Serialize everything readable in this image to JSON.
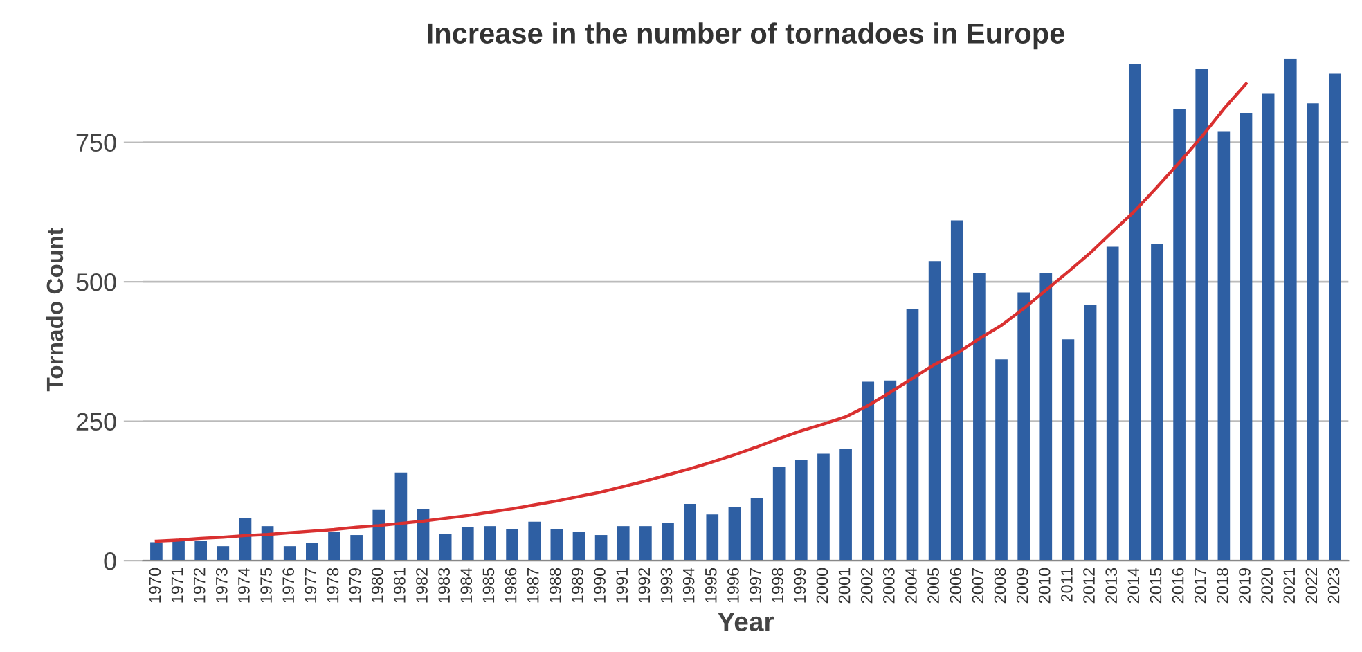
{
  "chart_data": {
    "type": "bar",
    "title": "Increase in the number of tornadoes in Europe",
    "xlabel": "Year",
    "ylabel": "Tornado Count",
    "categories": [
      "1970",
      "1971",
      "1972",
      "1973",
      "1974",
      "1975",
      "1976",
      "1977",
      "1978",
      "1979",
      "1980",
      "1981",
      "1982",
      "1983",
      "1984",
      "1985",
      "1986",
      "1987",
      "1988",
      "1989",
      "1990",
      "1991",
      "1992",
      "1993",
      "1994",
      "1995",
      "1996",
      "1997",
      "1998",
      "1999",
      "2000",
      "2001",
      "2002",
      "2003",
      "2004",
      "2005",
      "2006",
      "2007",
      "2008",
      "2009",
      "2010",
      "2011",
      "2012",
      "2013",
      "2014",
      "2015",
      "2016",
      "2017",
      "2018",
      "2019",
      "2020",
      "2021",
      "2022",
      "2023"
    ],
    "series": [
      {
        "color": "#2e5fa3",
        "values": [
          33,
          37,
          35,
          26,
          76,
          62,
          26,
          32,
          52,
          46,
          91,
          158,
          93,
          48,
          60,
          62,
          57,
          70,
          57,
          51,
          46,
          62,
          62,
          68,
          102,
          83,
          97,
          112,
          168,
          181,
          192,
          200,
          321,
          323,
          451,
          537,
          610,
          516,
          361,
          481,
          516,
          397,
          459,
          563,
          890,
          568,
          809,
          882,
          770,
          803,
          837,
          900,
          820,
          873
        ]
      },
      {
        "type": "line",
        "color": "#d93030",
        "values": [
          35,
          37,
          40,
          42,
          45,
          47,
          50,
          53,
          56,
          60,
          63,
          67,
          71,
          76,
          81,
          87,
          93,
          100,
          107,
          115,
          123,
          133,
          143,
          154,
          165,
          177,
          190,
          204,
          219,
          233,
          245,
          258,
          278,
          302,
          327,
          352,
          372,
          398,
          422,
          452,
          485,
          518,
          552,
          590,
          627,
          670,
          714,
          760,
          810,
          855,
          null,
          null,
          null,
          null
        ]
      }
    ],
    "ylim": [
      0,
      900
    ],
    "yticks": [
      0,
      250,
      500,
      750
    ],
    "grid": "y",
    "marker": "none",
    "line_style": "solid"
  }
}
